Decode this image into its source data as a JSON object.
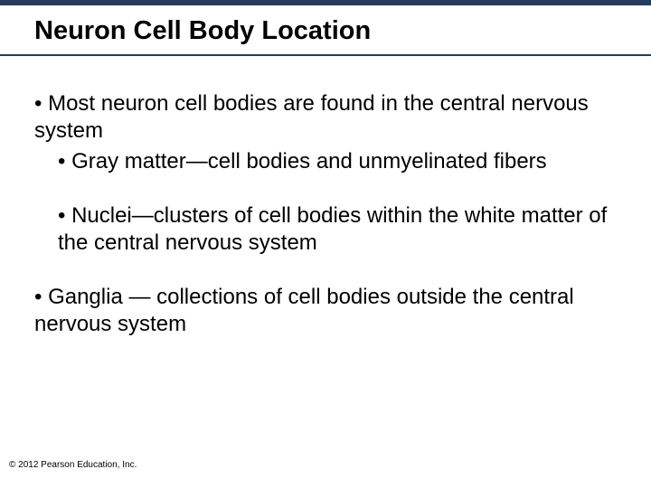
{
  "header": {
    "title": "Neuron Cell Body Location",
    "bar_color": "#243b5f"
  },
  "content": {
    "b1": "• Most neuron cell bodies are found in the central nervous system",
    "b1a": "• Gray matter—cell bodies and unmyelinated fibers",
    "b1b": "• Nuclei—clusters of cell bodies within the white matter of the central nervous system",
    "b2": "• Ganglia — collections of cell bodies outside the central nervous system"
  },
  "footer": {
    "copyright": "© 2012 Pearson Education, Inc."
  },
  "style": {
    "title_fontsize": 29,
    "body_fontsize": 24,
    "copyright_fontsize": 10,
    "text_color": "#000000",
    "background_color": "#ffffff"
  }
}
